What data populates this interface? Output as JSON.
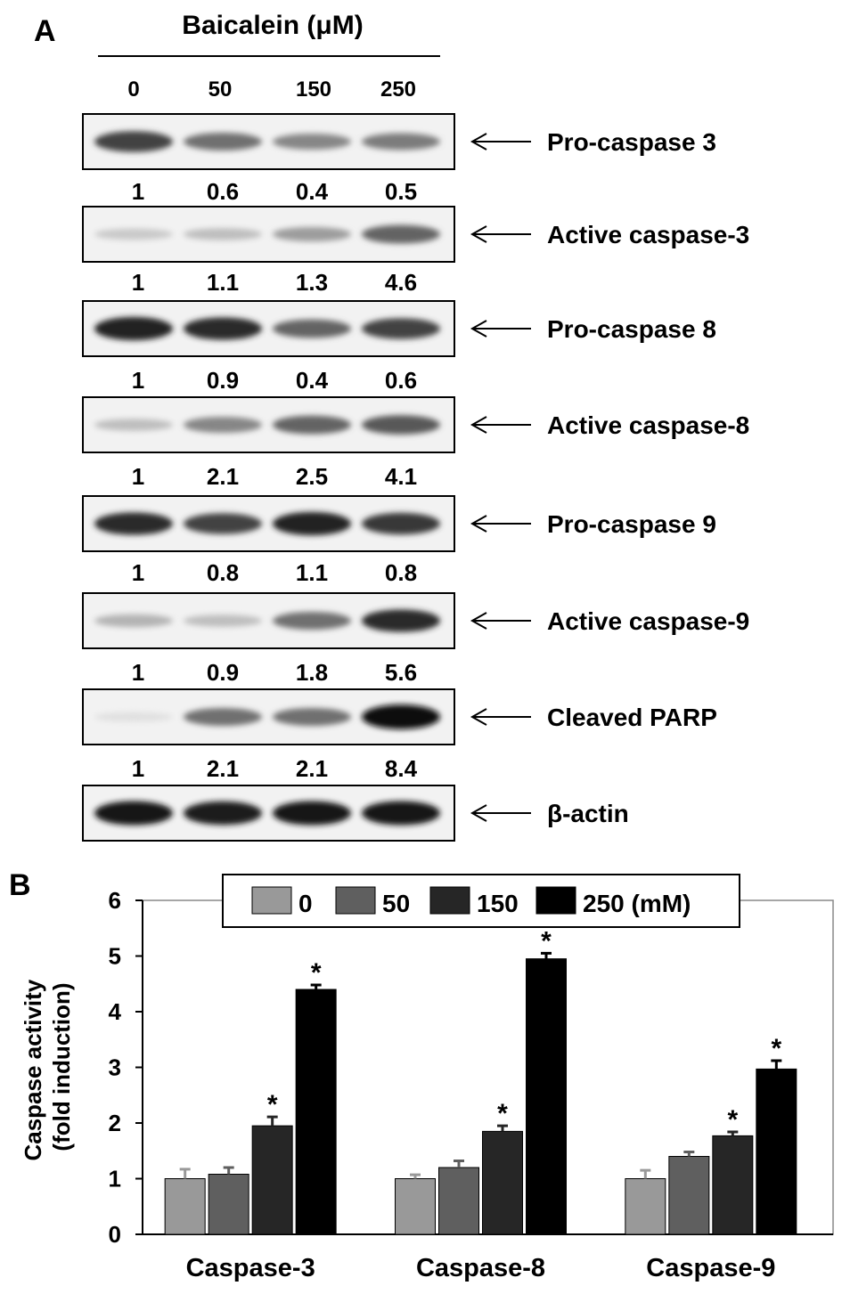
{
  "panel_a": {
    "label": "A",
    "treatment_label": "Baicalein (μM)",
    "doses": [
      "0",
      "50",
      "150",
      "250"
    ],
    "blots": [
      {
        "name": "Pro-caspase 3",
        "intensity": [
          0.75,
          0.55,
          0.45,
          0.5
        ],
        "ratios": [
          "1",
          "0.6",
          "0.4",
          "0.5"
        ]
      },
      {
        "name": "Active caspase-3",
        "intensity": [
          0.15,
          0.2,
          0.35,
          0.6
        ],
        "ratios": [
          "1",
          "1.1",
          "1.3",
          "4.6"
        ]
      },
      {
        "name": "Pro-caspase 8",
        "intensity": [
          0.9,
          0.85,
          0.6,
          0.75
        ],
        "ratios": [
          "1",
          "0.9",
          "0.4",
          "0.6"
        ]
      },
      {
        "name": "Active caspase-8",
        "intensity": [
          0.2,
          0.45,
          0.6,
          0.65
        ],
        "ratios": [
          "1",
          "2.1",
          "2.5",
          "4.1"
        ]
      },
      {
        "name": "Pro-caspase 9",
        "intensity": [
          0.85,
          0.75,
          0.9,
          0.8
        ],
        "ratios": [
          "1",
          "0.8",
          "1.1",
          "0.8"
        ]
      },
      {
        "name": "Active caspase-9",
        "intensity": [
          0.25,
          0.2,
          0.55,
          0.85
        ],
        "ratios": [
          "1",
          "0.9",
          "1.8",
          "5.6"
        ]
      },
      {
        "name": "Cleaved PARP",
        "intensity": [
          0.05,
          0.55,
          0.55,
          0.98
        ],
        "ratios": [
          "1",
          "2.1",
          "2.1",
          "8.4"
        ]
      },
      {
        "name": "β-actin",
        "intensity": [
          0.95,
          0.92,
          0.95,
          0.95
        ],
        "ratios": []
      }
    ]
  },
  "chart_data": {
    "type": "bar",
    "panel_label": "B",
    "ylabel_line1": "Caspase activity",
    "ylabel_line2": "(fold induction)",
    "xlabel": "",
    "ylim": [
      0,
      6
    ],
    "yticks": [
      "0",
      "1",
      "2",
      "3",
      "4",
      "5",
      "6"
    ],
    "categories": [
      "Caspase-3",
      "Caspase-8",
      "Caspase-9"
    ],
    "legend_position": "top-center",
    "series": [
      {
        "name": "0",
        "color": "#999999",
        "values": [
          1.0,
          1.0,
          1.0
        ],
        "errors": [
          0.17,
          0.07,
          0.15
        ],
        "sig": [
          "",
          "",
          ""
        ]
      },
      {
        "name": "50",
        "color": "#5f5f5f",
        "values": [
          1.08,
          1.2,
          1.4
        ],
        "errors": [
          0.12,
          0.12,
          0.08
        ],
        "sig": [
          "",
          "",
          ""
        ]
      },
      {
        "name": "150",
        "color": "#262626",
        "values": [
          1.95,
          1.85,
          1.77
        ],
        "errors": [
          0.16,
          0.1,
          0.07
        ],
        "sig": [
          "*",
          "*",
          "*"
        ]
      },
      {
        "name": "250 (mM)",
        "color": "#000000",
        "values": [
          4.4,
          4.95,
          2.97
        ],
        "errors": [
          0.08,
          0.1,
          0.15
        ],
        "sig": [
          "*",
          "*",
          "*"
        ]
      }
    ]
  }
}
